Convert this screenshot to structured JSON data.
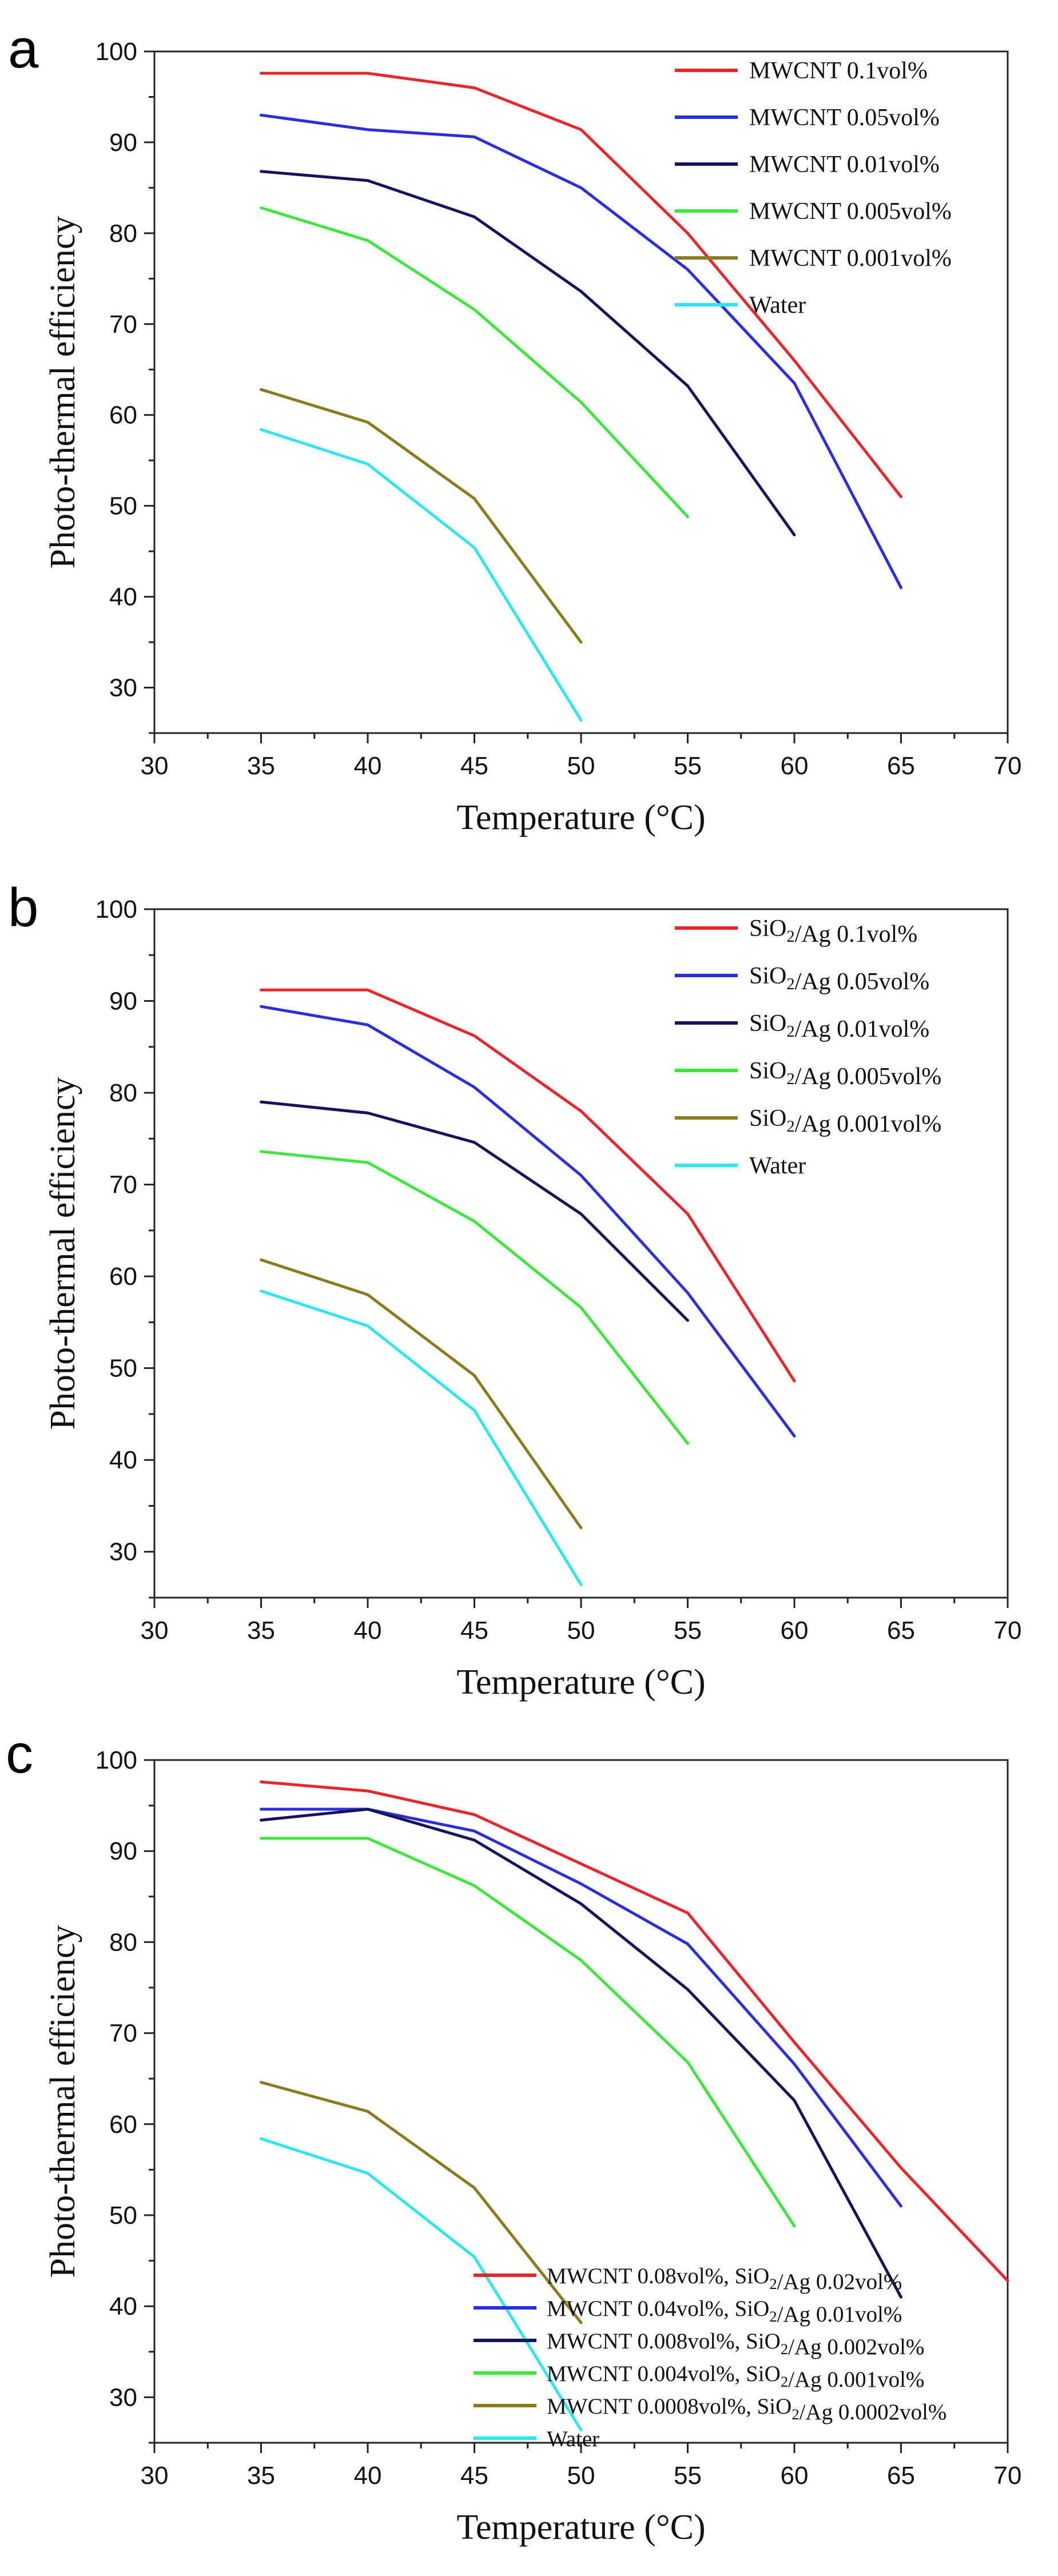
{
  "chart_data": [
    {
      "panel": "a",
      "type": "line",
      "xlabel": "Temperature (°C)",
      "ylabel": "Photo-thermal efficiency",
      "xlim": [
        30,
        70
      ],
      "ylim": [
        25,
        100
      ],
      "xticks": [
        30,
        35,
        40,
        45,
        50,
        55,
        60,
        65,
        70
      ],
      "yticks": [
        30,
        40,
        50,
        60,
        70,
        80,
        90,
        100
      ],
      "legend_position": "top-right",
      "series": [
        {
          "name": "MWCNT 0.1vol%",
          "color": "#e8262b",
          "x": [
            35,
            40,
            45,
            50,
            55,
            60,
            65
          ],
          "y": [
            97.6,
            97.6,
            96.0,
            91.4,
            80.0,
            66.0,
            51.0
          ]
        },
        {
          "name": "MWCNT 0.05vol%",
          "color": "#2a2ee0",
          "x": [
            35,
            40,
            45,
            50,
            55,
            60,
            65
          ],
          "y": [
            93.0,
            91.4,
            90.6,
            85.0,
            76.0,
            63.5,
            41.0
          ]
        },
        {
          "name": "MWCNT 0.01vol%",
          "color": "#14145e",
          "x": [
            35,
            40,
            45,
            50,
            55,
            60
          ],
          "y": [
            86.8,
            85.8,
            81.8,
            73.6,
            63.2,
            46.8
          ]
        },
        {
          "name": "MWCNT 0.005vol%",
          "color": "#3ee63e",
          "x": [
            35,
            40,
            45,
            50,
            55
          ],
          "y": [
            82.8,
            79.2,
            71.6,
            61.4,
            48.8
          ]
        },
        {
          "name": "MWCNT 0.001vol%",
          "color": "#8b7b1c",
          "x": [
            35,
            40,
            45,
            50
          ],
          "y": [
            62.8,
            59.2,
            50.8,
            35.0
          ]
        },
        {
          "name": "Water",
          "color": "#2ee6f0",
          "x": [
            35,
            40,
            45,
            50
          ],
          "y": [
            58.4,
            54.6,
            45.4,
            26.4
          ]
        }
      ]
    },
    {
      "panel": "b",
      "type": "line",
      "xlabel": "Temperature (°C)",
      "ylabel": "Photo-thermal efficiency",
      "xlim": [
        30,
        70
      ],
      "ylim": [
        25,
        100
      ],
      "xticks": [
        30,
        35,
        40,
        45,
        50,
        55,
        60,
        65,
        70
      ],
      "yticks": [
        30,
        40,
        50,
        60,
        70,
        80,
        90,
        100
      ],
      "legend_position": "top-right",
      "series": [
        {
          "name": "SiO2/Ag 0.1vol%",
          "color": "#e8262b",
          "x": [
            35,
            40,
            45,
            50,
            55,
            60
          ],
          "y": [
            91.2,
            91.2,
            86.2,
            78.0,
            66.8,
            48.6
          ]
        },
        {
          "name": "SiO2/Ag 0.05vol%",
          "color": "#2a2ee0",
          "x": [
            35,
            40,
            45,
            50,
            55,
            60
          ],
          "y": [
            89.4,
            87.4,
            80.6,
            71.0,
            58.2,
            42.6
          ]
        },
        {
          "name": "SiO2/Ag 0.01vol%",
          "color": "#14145e",
          "x": [
            35,
            40,
            45,
            50,
            55
          ],
          "y": [
            79.0,
            77.8,
            74.6,
            66.8,
            55.2
          ]
        },
        {
          "name": "SiO2/Ag 0.005vol%",
          "color": "#3ee63e",
          "x": [
            35,
            40,
            45,
            50,
            55
          ],
          "y": [
            73.6,
            72.4,
            66.0,
            56.6,
            41.8
          ]
        },
        {
          "name": "SiO2/Ag 0.001vol%",
          "color": "#8b7b1c",
          "x": [
            35,
            40,
            45,
            50
          ],
          "y": [
            61.8,
            58.0,
            49.2,
            32.6
          ]
        },
        {
          "name": "Water",
          "color": "#2ee6f0",
          "x": [
            35,
            40,
            45,
            50
          ],
          "y": [
            58.4,
            54.6,
            45.4,
            26.4
          ]
        }
      ]
    },
    {
      "panel": "c",
      "type": "line",
      "xlabel": "Temperature (°C)",
      "ylabel": "Photo-thermal efficiency",
      "xlim": [
        30,
        70
      ],
      "ylim": [
        25,
        100
      ],
      "xticks": [
        30,
        35,
        40,
        45,
        50,
        55,
        60,
        65,
        70
      ],
      "yticks": [
        30,
        40,
        50,
        60,
        70,
        80,
        90,
        100
      ],
      "legend_position": "bottom-center",
      "series": [
        {
          "name": "MWCNT 0.08vol%, SiO2/Ag 0.02vol%",
          "color": "#e8262b",
          "x": [
            35,
            40,
            45,
            50,
            55,
            60,
            65,
            70
          ],
          "y": [
            97.6,
            96.6,
            94.0,
            88.6,
            83.2,
            69.0,
            55.2,
            42.8
          ]
        },
        {
          "name": "MWCNT 0.04vol%, SiO2/Ag 0.01vol%",
          "color": "#2a2ee0",
          "x": [
            35,
            40,
            45,
            50,
            55,
            60,
            65
          ],
          "y": [
            94.6,
            94.6,
            92.2,
            86.4,
            79.8,
            66.6,
            51.0
          ]
        },
        {
          "name": "MWCNT 0.008vol%, SiO2/Ag 0.002vol%",
          "color": "#14145e",
          "x": [
            35,
            40,
            45,
            50,
            55,
            60,
            65
          ],
          "y": [
            93.4,
            94.6,
            91.2,
            84.2,
            74.8,
            62.6,
            41.0
          ]
        },
        {
          "name": "MWCNT 0.004vol%, SiO2/Ag 0.001vol%",
          "color": "#3ee63e",
          "x": [
            35,
            40,
            45,
            50,
            55,
            60
          ],
          "y": [
            91.4,
            91.4,
            86.2,
            78.0,
            66.8,
            48.8
          ]
        },
        {
          "name": "MWCNT 0.0008vol%, SiO2/Ag 0.0002vol%",
          "color": "#8b7b1c",
          "x": [
            35,
            40,
            45,
            50
          ],
          "y": [
            64.6,
            61.4,
            53.0,
            38.2
          ]
        },
        {
          "name": "Water",
          "color": "#2ee6f0",
          "x": [
            35,
            40,
            45,
            50
          ],
          "y": [
            58.4,
            54.6,
            45.4,
            26.4
          ]
        }
      ]
    }
  ]
}
